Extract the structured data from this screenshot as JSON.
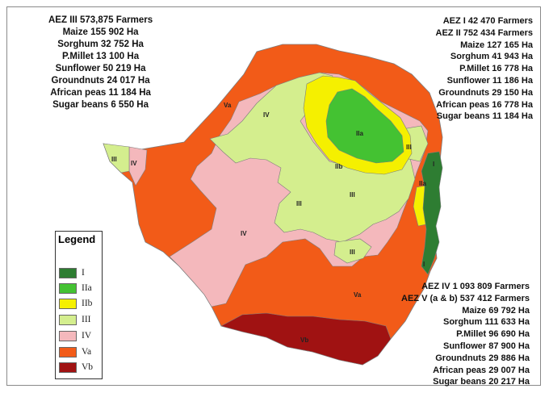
{
  "colors": {
    "I": "#2e7d32",
    "IIa": "#44c232",
    "IIb": "#f5f000",
    "III": "#d4ee8e",
    "IV": "#f4b8bc",
    "Va": "#f25b18",
    "Vb": "#a01212",
    "outline": "#7d7d7d"
  },
  "legend": {
    "title": "Legend",
    "items": [
      {
        "label": "I",
        "color": "#2e7d32"
      },
      {
        "label": "IIa",
        "color": "#44c232"
      },
      {
        "label": "IIb",
        "color": "#f5f000"
      },
      {
        "label": "III",
        "color": "#d4ee8e"
      },
      {
        "label": "IV",
        "color": "#f4b8bc"
      },
      {
        "label": "Va",
        "color": "#f25b18"
      },
      {
        "label": "Vb",
        "color": "#a01212"
      }
    ]
  },
  "zone_labels": {
    "IIa": "IIa",
    "IIb": "IIb",
    "III": "III",
    "IV": "IV",
    "Va": "Va",
    "Vb": "Vb",
    "I": "I"
  },
  "stats_left": [
    "AEZ III  573,875 Farmers",
    "Maize 155 902 Ha",
    "Sorghum 32 752 Ha",
    "P.Millet 13 100 Ha",
    "Sunflower  50 219 Ha",
    "Groundnuts  24 017 Ha",
    "African peas 11 184 Ha",
    "Sugar beans  6 550 Ha"
  ],
  "stats_right_top": [
    "AEZ I  42 470 Farmers",
    "AEZ II 752 434 Farmers",
    "Maize 127 165 Ha",
    "Sorghum 41 943 Ha",
    "P.Millet    16 778 Ha",
    "Sunflower 11 186 Ha",
    "Groundnuts  29 150 Ha",
    "African peas 16 778 Ha",
    "Sugar beans 11 184 Ha"
  ],
  "stats_right_bottom": [
    "AEZ IV 1 093 809 Farmers",
    "AEZ V (a & b) 537 412 Farmers",
    "Maize 69 792 Ha",
    "Sorghum 111 633 Ha",
    "P.Millet 96 690 Ha",
    "Sunflower  87 900  Ha",
    "Groundnuts   29 886 Ha",
    "African peas 29 007 Ha",
    "Sugar beans  20 217 Ha"
  ]
}
